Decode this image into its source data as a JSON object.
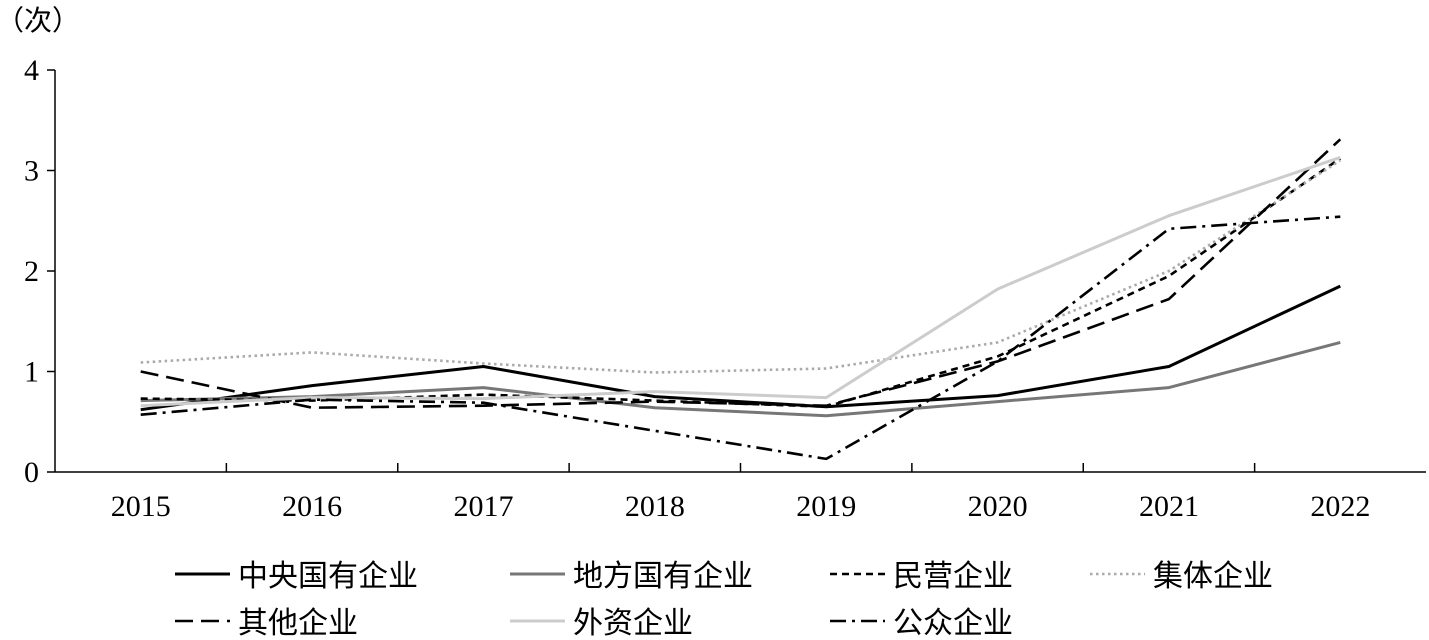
{
  "chart_data": {
    "type": "line",
    "title": "",
    "xlabel": "",
    "ylabel": "（次）",
    "ylim": [
      0,
      4
    ],
    "yticks": [
      "0",
      "1",
      "2",
      "3",
      "4"
    ],
    "categories": [
      "2015",
      "2016",
      "2017",
      "2018",
      "2019",
      "2020",
      "2021",
      "2022"
    ],
    "grid": false,
    "legend_position": "bottom",
    "series": [
      {
        "name": "中央国有企业",
        "color": "#000000",
        "dash": "solid",
        "values": [
          0.62,
          0.86,
          1.05,
          0.75,
          0.65,
          0.76,
          1.05,
          1.85
        ]
      },
      {
        "name": "地方国有企业",
        "color": "#777777",
        "dash": "solid",
        "values": [
          0.71,
          0.75,
          0.84,
          0.64,
          0.56,
          0.7,
          0.84,
          1.29
        ]
      },
      {
        "name": "民营企业",
        "color": "#000000",
        "dash": "short-dash",
        "values": [
          0.73,
          0.71,
          0.77,
          0.71,
          0.65,
          1.15,
          1.95,
          3.12
        ]
      },
      {
        "name": "集体企业",
        "color": "#aaaaaa",
        "dash": "dotted",
        "values": [
          1.09,
          1.19,
          1.08,
          0.99,
          1.03,
          1.29,
          2.0,
          3.1
        ]
      },
      {
        "name": "其他企业",
        "color": "#000000",
        "dash": "long-dash",
        "values": [
          1.0,
          0.64,
          0.66,
          0.7,
          0.66,
          1.1,
          1.72,
          3.31
        ]
      },
      {
        "name": "外资企业",
        "color": "#cccccc",
        "dash": "solid",
        "values": [
          0.66,
          0.74,
          0.73,
          0.8,
          0.74,
          1.82,
          2.55,
          3.13
        ]
      },
      {
        "name": "公众企业",
        "color": "#000000",
        "dash": "dash-dot",
        "values": [
          0.57,
          0.72,
          0.69,
          0.41,
          0.13,
          1.1,
          2.42,
          2.54
        ]
      }
    ]
  }
}
